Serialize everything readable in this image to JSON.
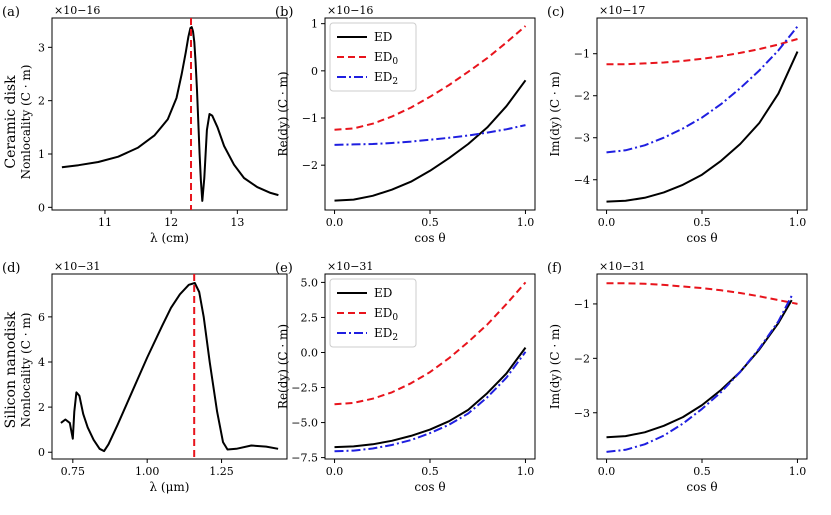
{
  "figure": {
    "row_labels": [
      {
        "name": "Ceramic disk",
        "sub": "Nonlocality (C · m)"
      },
      {
        "name": "Silicon nanodisk",
        "sub": "Nonlocality (C · m)"
      }
    ]
  },
  "colors": {
    "ED": "#000000",
    "ED0": "#e8141c",
    "ED2": "#1f1fe0"
  },
  "chart_data": [
    {
      "id": "a",
      "type": "line",
      "title": "(a)",
      "exponent": "×10−16",
      "xlabel": "λ (cm)",
      "ylabel": "",
      "xlim": [
        10.2,
        13.75
      ],
      "ylim": [
        -0.05,
        3.55
      ],
      "xticks": [
        11,
        12,
        13
      ],
      "xticklabels": [
        "11",
        "12",
        "13"
      ],
      "yticks": [
        0,
        1,
        2,
        3
      ],
      "yticklabels": [
        "0",
        "1",
        "2",
        "3"
      ],
      "vline": {
        "x": 12.3,
        "color": "#e8141c"
      },
      "series": [
        {
          "name": "Nonlocality",
          "color": "#000000",
          "dash": "solid",
          "x": [
            10.35,
            10.6,
            10.9,
            11.2,
            11.5,
            11.75,
            11.95,
            12.08,
            12.16,
            12.22,
            12.26,
            12.29,
            12.31,
            12.33,
            12.35,
            12.37,
            12.39,
            12.41,
            12.43,
            12.45,
            12.47,
            12.5,
            12.54,
            12.58,
            12.62,
            12.7,
            12.8,
            12.95,
            13.1,
            13.3,
            13.5,
            13.62
          ],
          "y": [
            0.75,
            0.79,
            0.85,
            0.95,
            1.12,
            1.35,
            1.65,
            2.05,
            2.5,
            2.9,
            3.2,
            3.36,
            3.38,
            3.3,
            3.1,
            2.72,
            2.2,
            1.6,
            1.0,
            0.5,
            0.12,
            0.55,
            1.45,
            1.75,
            1.72,
            1.5,
            1.15,
            0.8,
            0.55,
            0.38,
            0.27,
            0.23
          ]
        }
      ]
    },
    {
      "id": "b",
      "type": "line",
      "title": "(b)",
      "exponent": "×10−16",
      "xlabel": "cos θ",
      "ylabel": "Re(dy) (C · m)",
      "xlim": [
        -0.05,
        1.05
      ],
      "ylim": [
        -2.95,
        1.12
      ],
      "xticks": [
        0,
        0.5,
        1
      ],
      "xticklabels": [
        "0.0",
        "0.5",
        "1.0"
      ],
      "yticks": [
        -2,
        -1,
        0,
        1
      ],
      "yticklabels": [
        "−2",
        "−1",
        "0",
        "1"
      ],
      "legend": "top-left",
      "series": [
        {
          "name": "ED",
          "color": "#000000",
          "dash": "solid",
          "x": [
            0,
            0.1,
            0.2,
            0.3,
            0.4,
            0.5,
            0.6,
            0.7,
            0.8,
            0.9,
            1.0
          ],
          "y": [
            -2.75,
            -2.73,
            -2.65,
            -2.52,
            -2.35,
            -2.12,
            -1.85,
            -1.55,
            -1.2,
            -0.75,
            -0.2
          ]
        },
        {
          "name": "ED0",
          "color": "#e8141c",
          "dash": "dashed",
          "x": [
            0,
            0.1,
            0.2,
            0.3,
            0.4,
            0.5,
            0.6,
            0.7,
            0.8,
            0.9,
            1.0
          ],
          "y": [
            -1.25,
            -1.22,
            -1.12,
            -0.97,
            -0.78,
            -0.55,
            -0.3,
            -0.02,
            0.27,
            0.6,
            0.95
          ]
        },
        {
          "name": "ED2",
          "color": "#1f1fe0",
          "dash": "dashdot",
          "x": [
            0,
            0.1,
            0.2,
            0.3,
            0.4,
            0.5,
            0.6,
            0.7,
            0.8,
            0.9,
            1.0
          ],
          "y": [
            -1.57,
            -1.56,
            -1.55,
            -1.53,
            -1.5,
            -1.46,
            -1.42,
            -1.37,
            -1.31,
            -1.24,
            -1.15
          ]
        }
      ]
    },
    {
      "id": "c",
      "type": "line",
      "title": "(c)",
      "exponent": "×10−17",
      "xlabel": "cos θ",
      "ylabel": "Im(dy) (C · m)",
      "xlim": [
        -0.05,
        1.05
      ],
      "ylim": [
        -4.72,
        -0.15
      ],
      "xticks": [
        0,
        0.5,
        1
      ],
      "xticklabels": [
        "0.0",
        "0.5",
        "1.0"
      ],
      "yticks": [
        -4,
        -3,
        -2,
        -1
      ],
      "yticklabels": [
        "−4",
        "−3",
        "−2",
        "−1"
      ],
      "series": [
        {
          "name": "ED",
          "color": "#000000",
          "dash": "solid",
          "x": [
            0,
            0.1,
            0.2,
            0.3,
            0.4,
            0.5,
            0.6,
            0.7,
            0.8,
            0.9,
            1.0
          ],
          "y": [
            -4.52,
            -4.5,
            -4.43,
            -4.3,
            -4.12,
            -3.88,
            -3.55,
            -3.15,
            -2.65,
            -1.95,
            -0.95
          ]
        },
        {
          "name": "ED0",
          "color": "#e8141c",
          "dash": "dashed",
          "x": [
            0,
            0.1,
            0.2,
            0.3,
            0.4,
            0.5,
            0.6,
            0.7,
            0.8,
            0.9,
            1.0
          ],
          "y": [
            -1.25,
            -1.25,
            -1.23,
            -1.21,
            -1.17,
            -1.12,
            -1.06,
            -0.98,
            -0.89,
            -0.78,
            -0.65
          ]
        },
        {
          "name": "ED2",
          "color": "#1f1fe0",
          "dash": "dashdot",
          "x": [
            0,
            0.1,
            0.2,
            0.3,
            0.4,
            0.5,
            0.6,
            0.7,
            0.8,
            0.9,
            1.0
          ],
          "y": [
            -3.35,
            -3.3,
            -3.18,
            -3.0,
            -2.78,
            -2.52,
            -2.2,
            -1.82,
            -1.4,
            -0.92,
            -0.35
          ]
        }
      ]
    },
    {
      "id": "d",
      "type": "line",
      "title": "(d)",
      "exponent": "×10−31",
      "xlabel": "λ (μm)",
      "ylabel": "",
      "xlim": [
        0.68,
        1.47
      ],
      "ylim": [
        -0.3,
        7.9
      ],
      "xticks": [
        0.75,
        1.0,
        1.25
      ],
      "xticklabels": [
        "0.75",
        "1.00",
        "1.25"
      ],
      "yticks": [
        0,
        2,
        4,
        6
      ],
      "yticklabels": [
        "0",
        "2",
        "4",
        "6"
      ],
      "vline": {
        "x": 1.158,
        "color": "#e8141c"
      },
      "series": [
        {
          "name": "Nonlocality",
          "color": "#000000",
          "dash": "solid",
          "x": [
            0.71,
            0.725,
            0.74,
            0.75,
            0.755,
            0.762,
            0.772,
            0.785,
            0.8,
            0.82,
            0.84,
            0.855,
            0.87,
            0.9,
            0.95,
            1.0,
            1.05,
            1.08,
            1.11,
            1.14,
            1.16,
            1.175,
            1.19,
            1.21,
            1.235,
            1.255,
            1.27,
            1.3,
            1.35,
            1.4,
            1.44
          ],
          "y": [
            1.3,
            1.45,
            1.3,
            0.6,
            1.8,
            2.65,
            2.5,
            1.7,
            1.1,
            0.55,
            0.15,
            0.05,
            0.35,
            1.2,
            2.7,
            4.2,
            5.6,
            6.4,
            7.0,
            7.42,
            7.5,
            7.1,
            6.0,
            4.0,
            1.8,
            0.45,
            0.12,
            0.15,
            0.3,
            0.25,
            0.15
          ]
        }
      ]
    },
    {
      "id": "e",
      "type": "line",
      "title": "(e)",
      "exponent": "×10−31",
      "xlabel": "cos θ",
      "ylabel": "Re(dy) (C · m)",
      "xlim": [
        -0.05,
        1.05
      ],
      "ylim": [
        -7.6,
        5.6
      ],
      "xticks": [
        0,
        0.5,
        1
      ],
      "xticklabels": [
        "0.0",
        "0.5",
        "1.0"
      ],
      "yticks": [
        -7.5,
        -5,
        -2.5,
        0,
        2.5,
        5
      ],
      "yticklabels": [
        "−7.5",
        "−5.0",
        "−2.5",
        "0.0",
        "2.5",
        "5.0"
      ],
      "legend": "top-left",
      "series": [
        {
          "name": "ED",
          "color": "#000000",
          "dash": "solid",
          "x": [
            0,
            0.1,
            0.2,
            0.3,
            0.4,
            0.5,
            0.6,
            0.7,
            0.8,
            0.9,
            1.0
          ],
          "y": [
            -6.75,
            -6.7,
            -6.55,
            -6.3,
            -5.95,
            -5.5,
            -4.9,
            -4.1,
            -2.9,
            -1.5,
            0.35
          ]
        },
        {
          "name": "ED0",
          "color": "#e8141c",
          "dash": "dashed",
          "x": [
            0,
            0.1,
            0.2,
            0.3,
            0.4,
            0.5,
            0.6,
            0.7,
            0.8,
            0.9,
            1.0
          ],
          "y": [
            -3.7,
            -3.6,
            -3.3,
            -2.85,
            -2.2,
            -1.4,
            -0.4,
            0.75,
            2.0,
            3.45,
            5.0
          ]
        },
        {
          "name": "ED2",
          "color": "#1f1fe0",
          "dash": "dashdot",
          "x": [
            0,
            0.1,
            0.2,
            0.3,
            0.4,
            0.5,
            0.6,
            0.7,
            0.8,
            0.9,
            1.0
          ],
          "y": [
            -7.05,
            -7.0,
            -6.85,
            -6.6,
            -6.25,
            -5.75,
            -5.15,
            -4.35,
            -3.2,
            -1.8,
            0.05
          ]
        }
      ]
    },
    {
      "id": "f",
      "type": "line",
      "title": "(f)",
      "exponent": "×10−31",
      "xlabel": "cos θ",
      "ylabel": "Im(dy) (C · m)",
      "xlim": [
        -0.05,
        1.05
      ],
      "ylim": [
        -3.85,
        -0.45
      ],
      "xticks": [
        0,
        0.5,
        1
      ],
      "xticklabels": [
        "0.0",
        "0.5",
        "1.0"
      ],
      "yticks": [
        -3,
        -2,
        -1
      ],
      "yticklabels": [
        "−3",
        "−2",
        "−1"
      ],
      "series": [
        {
          "name": "ED",
          "color": "#000000",
          "dash": "solid",
          "x": [
            0,
            0.1,
            0.2,
            0.3,
            0.4,
            0.5,
            0.6,
            0.7,
            0.8,
            0.9,
            0.97
          ],
          "y": [
            -3.45,
            -3.43,
            -3.36,
            -3.24,
            -3.08,
            -2.86,
            -2.58,
            -2.25,
            -1.84,
            -1.35,
            -0.93
          ]
        },
        {
          "name": "ED0",
          "color": "#e8141c",
          "dash": "dashed",
          "x": [
            0,
            0.1,
            0.2,
            0.3,
            0.4,
            0.5,
            0.6,
            0.7,
            0.8,
            0.9,
            1.0
          ],
          "y": [
            -0.62,
            -0.62,
            -0.63,
            -0.65,
            -0.68,
            -0.71,
            -0.75,
            -0.8,
            -0.86,
            -0.93,
            -1.0
          ]
        },
        {
          "name": "ED2",
          "color": "#1f1fe0",
          "dash": "dashdot",
          "x": [
            0,
            0.1,
            0.2,
            0.3,
            0.4,
            0.5,
            0.6,
            0.7,
            0.8,
            0.9,
            0.97
          ],
          "y": [
            -3.72,
            -3.68,
            -3.58,
            -3.42,
            -3.2,
            -2.93,
            -2.62,
            -2.25,
            -1.82,
            -1.32,
            -0.85
          ]
        }
      ]
    }
  ]
}
